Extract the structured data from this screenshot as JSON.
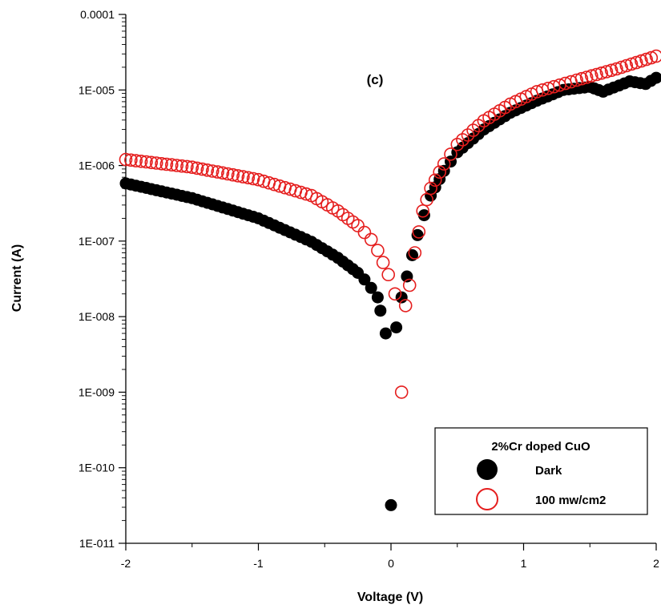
{
  "chart_data": {
    "type": "scatter",
    "title": "",
    "annotation": "(c)",
    "xlabel": "Voltage (V)",
    "ylabel": "Current (A)",
    "xlim": [
      -2,
      2
    ],
    "ylim": [
      1e-11,
      0.0001
    ],
    "yscale": "log",
    "x_ticks": [
      -2,
      -1,
      0,
      1,
      2
    ],
    "x_tick_labels": [
      "-2",
      "-1",
      "0",
      "1",
      "2"
    ],
    "y_ticks": [
      1e-11,
      1e-10,
      1e-09,
      1e-08,
      1e-07,
      1e-06,
      1e-05,
      0.0001
    ],
    "y_tick_labels": [
      "1E-011",
      "1E-010",
      "1E-009",
      "1E-008",
      "1E-007",
      "1E-006",
      "1E-005",
      "0.0001"
    ],
    "grid": false,
    "legend": {
      "title": "2%Cr doped CuO",
      "placement": "bottom-right"
    },
    "series": [
      {
        "name": "Dark",
        "marker": "filled-circle",
        "color": "#000000",
        "anchors": [
          [
            -2.0,
            5.8e-07
          ],
          [
            -1.5,
            3.7e-07
          ],
          [
            -1.0,
            2e-07
          ],
          [
            -0.6,
            9.8e-08
          ],
          [
            -0.4,
            6e-08
          ],
          [
            -0.25,
            3.8e-08
          ],
          [
            -0.2,
            3.1e-08
          ],
          [
            -0.15,
            2.4e-08
          ],
          [
            -0.1,
            1.8e-08
          ],
          [
            -0.08,
            1.2e-08
          ],
          [
            -0.04,
            6e-09
          ],
          [
            0.0,
            3.2e-11
          ],
          [
            0.04,
            7.2e-09
          ],
          [
            0.08,
            1.8e-08
          ],
          [
            0.12,
            3.4e-08
          ],
          [
            0.16,
            6.5e-08
          ],
          [
            0.2,
            1.2e-07
          ],
          [
            0.25,
            2.2e-07
          ],
          [
            0.3,
            4e-07
          ],
          [
            0.4,
            8.5e-07
          ],
          [
            0.5,
            1.5e-06
          ],
          [
            0.7,
            3e-06
          ],
          [
            0.9,
            5e-06
          ],
          [
            1.1,
            7.2e-06
          ],
          [
            1.3,
            1e-05
          ],
          [
            1.5,
            1.1e-05
          ],
          [
            1.6,
            9.5e-06
          ],
          [
            1.8,
            1.3e-05
          ],
          [
            1.92,
            1.2e-05
          ],
          [
            2.0,
            1.45e-05
          ]
        ]
      },
      {
        "name": "100 mw/cm2",
        "marker": "open-circle",
        "color": "#e51e1e",
        "anchors": [
          [
            -2.0,
            1.2e-06
          ],
          [
            -1.5,
            9.5e-07
          ],
          [
            -1.0,
            6.5e-07
          ],
          [
            -0.6,
            4e-07
          ],
          [
            -0.4,
            2.5e-07
          ],
          [
            -0.25,
            1.6e-07
          ],
          [
            -0.2,
            1.3e-07
          ],
          [
            -0.15,
            1.05e-07
          ],
          [
            -0.1,
            7.5e-08
          ],
          [
            -0.06,
            5.2e-08
          ],
          [
            -0.02,
            3.6e-08
          ],
          [
            0.03,
            2e-08
          ],
          [
            0.08,
            1e-09
          ],
          [
            0.11,
            1.4e-08
          ],
          [
            0.14,
            2.6e-08
          ],
          [
            0.18,
            7e-08
          ],
          [
            0.24,
            2.5e-07
          ],
          [
            0.3,
            5e-07
          ],
          [
            0.4,
            1.05e-06
          ],
          [
            0.5,
            1.9e-06
          ],
          [
            0.7,
            3.9e-06
          ],
          [
            0.9,
            6.5e-06
          ],
          [
            1.1,
            9.5e-06
          ],
          [
            1.4,
            1.35e-05
          ],
          [
            1.7,
            1.9e-05
          ],
          [
            2.0,
            2.8e-05
          ]
        ]
      }
    ]
  }
}
